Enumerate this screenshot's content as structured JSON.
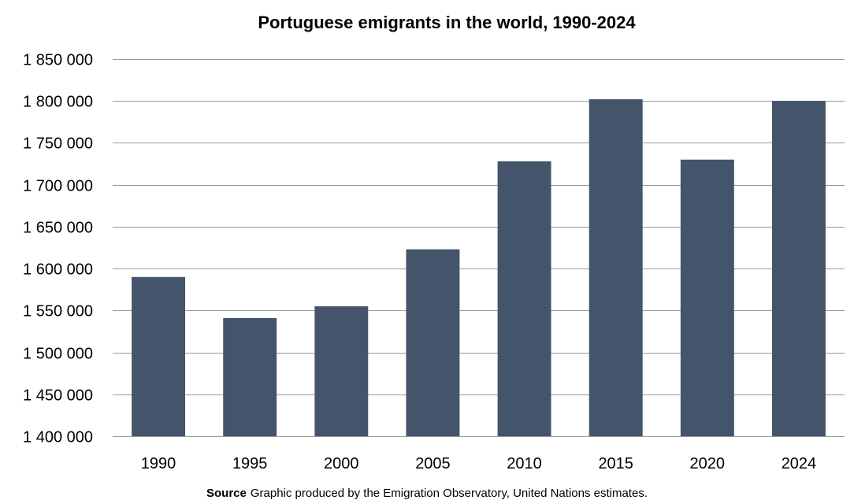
{
  "chart_data": {
    "type": "bar",
    "title": "Portuguese emigrants in the world, 1990-2024",
    "categories": [
      "1990",
      "1995",
      "2000",
      "2005",
      "2010",
      "2015",
      "2020",
      "2024"
    ],
    "values": [
      1590000,
      1541000,
      1555000,
      1623000,
      1728000,
      1802000,
      1730000,
      1800000
    ],
    "ylim": [
      1400000,
      1850000
    ],
    "yticks": [
      1400000,
      1450000,
      1500000,
      1550000,
      1600000,
      1650000,
      1700000,
      1750000,
      1800000,
      1850000
    ],
    "ytick_labels": [
      "1 400 000",
      "1 450 000",
      "1 500 000",
      "1 550 000",
      "1 600 000",
      "1 650 000",
      "1 700 000",
      "1 750 000",
      "1 800 000",
      "1 850 000"
    ],
    "grid": true,
    "bar_color": "#44546a",
    "gridline_color": "#9a9a9a"
  },
  "source": {
    "label": "Source",
    "text": "Graphic produced by the Emigration Observatory, United Nations estimates."
  }
}
